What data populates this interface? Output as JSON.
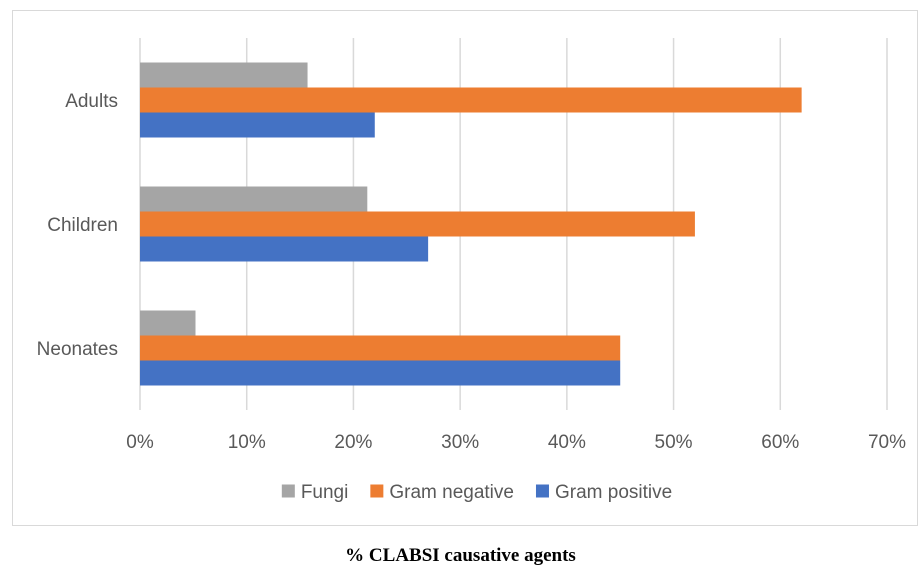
{
  "caption": "% CLABSI causative agents",
  "chart_data": {
    "type": "bar",
    "orientation": "horizontal",
    "categories": [
      "Neonates",
      "Children",
      "Adults"
    ],
    "series": [
      {
        "name": "Fungi",
        "color": "#a5a5a5",
        "values": [
          5.2,
          21.3,
          15.7
        ]
      },
      {
        "name": "Gram negative",
        "color": "#ed7d31",
        "values": [
          45,
          52,
          62
        ]
      },
      {
        "name": "Gram positive",
        "color": "#4472c4",
        "values": [
          45,
          27,
          22
        ]
      }
    ],
    "xlim": [
      0,
      70
    ],
    "xticks": [
      "0%",
      "10%",
      "20%",
      "30%",
      "40%",
      "50%",
      "60%",
      "70%"
    ],
    "grid": true,
    "legend": "bottom",
    "title": "",
    "xlabel": "",
    "ylabel": ""
  }
}
